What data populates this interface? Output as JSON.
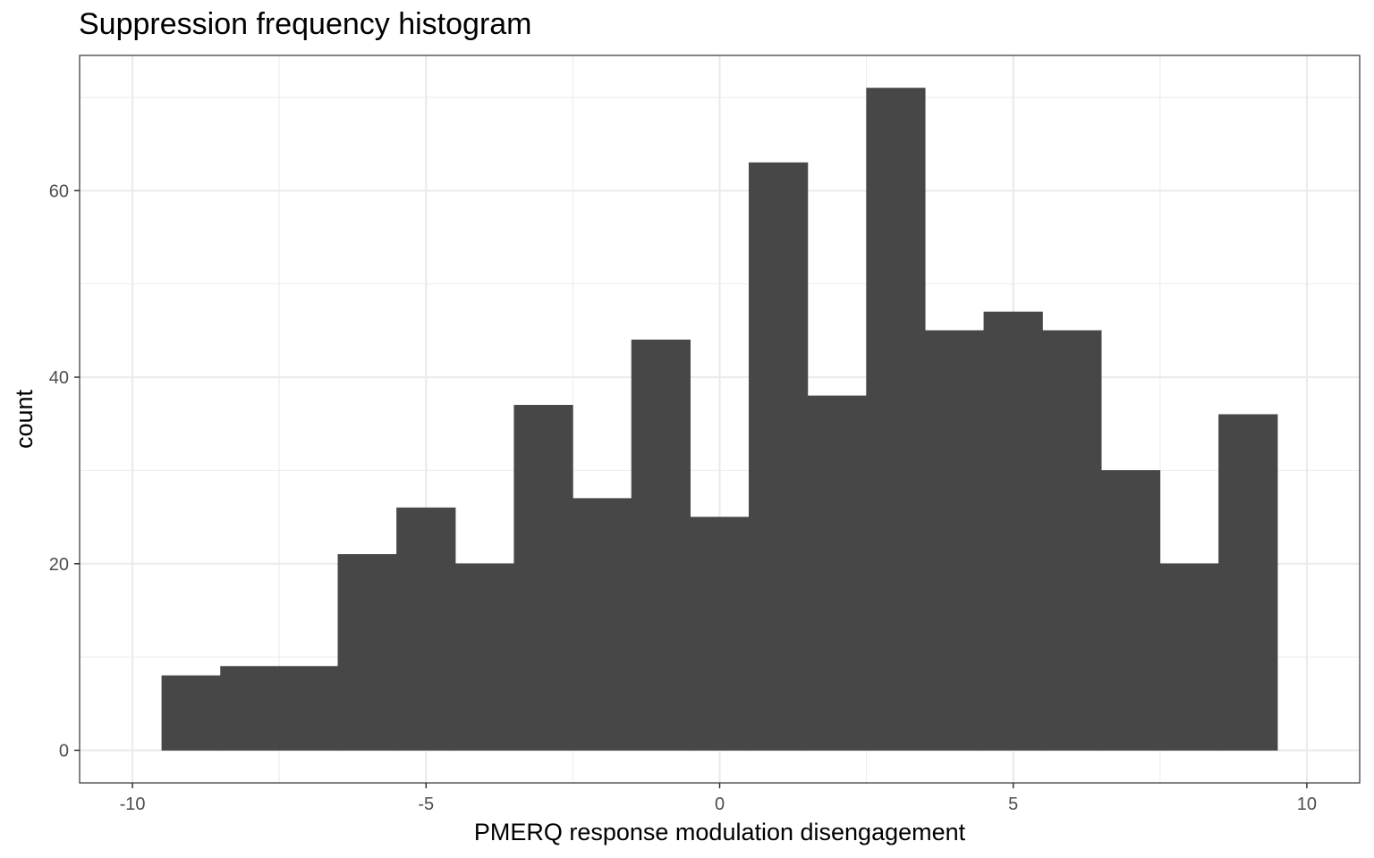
{
  "chart_data": {
    "type": "bar",
    "title": "Suppression frequency histogram",
    "xlabel": "PMERQ response modulation disengagement",
    "ylabel": "count",
    "xlim": [
      -10.9,
      10.9
    ],
    "ylim": [
      -3.5,
      74.5
    ],
    "x_ticks": [
      -10,
      -5,
      0,
      5,
      10
    ],
    "x_tick_labels": [
      "-10",
      "-5",
      "0",
      "5",
      "10"
    ],
    "y_ticks": [
      0,
      20,
      40,
      60
    ],
    "y_tick_labels": [
      "0",
      "20",
      "40",
      "60"
    ],
    "grid": true,
    "bin_width": 1,
    "bins": [
      {
        "start": -9.5,
        "end": -8.5,
        "count": 8
      },
      {
        "start": -8.5,
        "end": -7.5,
        "count": 9
      },
      {
        "start": -7.5,
        "end": -6.5,
        "count": 9
      },
      {
        "start": -6.5,
        "end": -5.5,
        "count": 21
      },
      {
        "start": -5.5,
        "end": -4.5,
        "count": 26
      },
      {
        "start": -4.5,
        "end": -3.5,
        "count": 20
      },
      {
        "start": -3.5,
        "end": -2.5,
        "count": 37
      },
      {
        "start": -2.5,
        "end": -1.5,
        "count": 27
      },
      {
        "start": -1.5,
        "end": -0.5,
        "count": 44
      },
      {
        "start": -0.5,
        "end": 0.5,
        "count": 25
      },
      {
        "start": 0.5,
        "end": 1.5,
        "count": 63
      },
      {
        "start": 1.5,
        "end": 2.5,
        "count": 38
      },
      {
        "start": 2.5,
        "end": 3.5,
        "count": 71
      },
      {
        "start": 3.5,
        "end": 4.5,
        "count": 45
      },
      {
        "start": 4.5,
        "end": 5.5,
        "count": 47
      },
      {
        "start": 5.5,
        "end": 6.5,
        "count": 45
      },
      {
        "start": 6.5,
        "end": 7.5,
        "count": 30
      },
      {
        "start": 7.5,
        "end": 8.5,
        "count": 20
      },
      {
        "start": 8.5,
        "end": 9.5,
        "count": 36
      }
    ],
    "bar_color": "#474747",
    "grid_color": "#ebebeb",
    "panel_border_color": "#333333"
  }
}
